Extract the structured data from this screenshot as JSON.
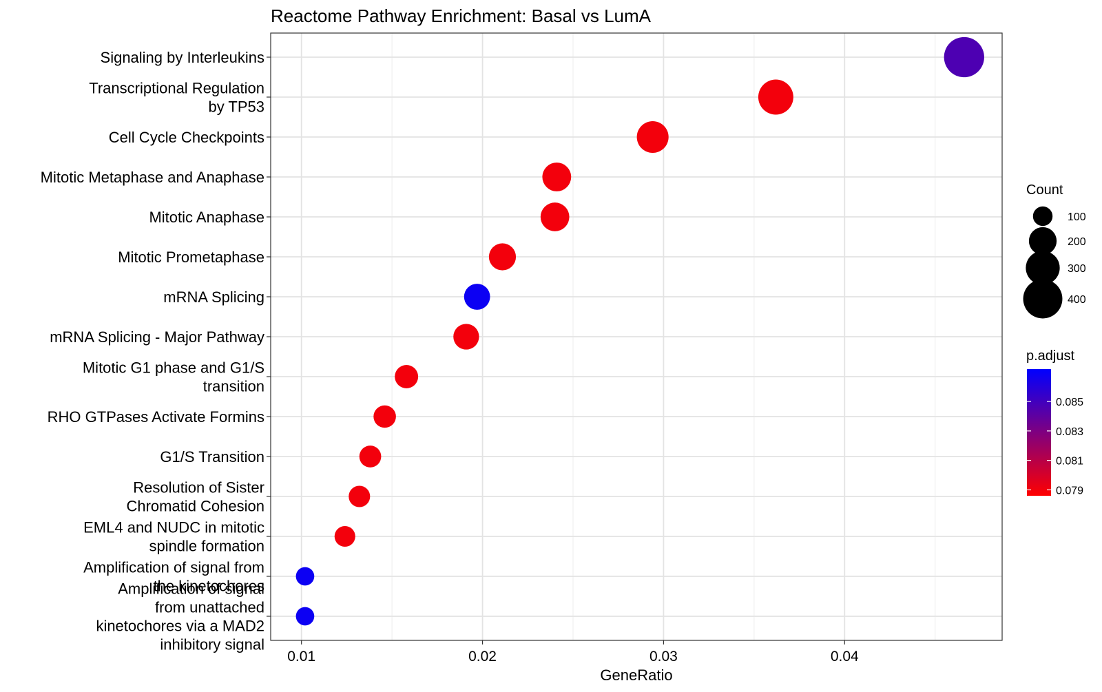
{
  "chart_data": {
    "type": "scatter",
    "title": "Reactome Pathway Enrichment: Basal vs LumA",
    "xlabel": "GeneRatio",
    "ylabel": "",
    "xlim": [
      0.0083,
      0.0487
    ],
    "x_ticks": [
      "0.01",
      "0.02",
      "0.03",
      "0.04"
    ],
    "x_tick_values": [
      0.01,
      0.02,
      0.03,
      0.04
    ],
    "grid": true,
    "categories": [
      "Signaling by Interleukins",
      "Transcriptional Regulation\nby TP53",
      "Cell Cycle Checkpoints",
      "Mitotic Metaphase and Anaphase",
      "Mitotic Anaphase",
      "Mitotic Prometaphase",
      "mRNA Splicing",
      "mRNA Splicing - Major Pathway",
      "Mitotic G1 phase and G1/S\ntransition",
      "RHO GTPases Activate Formins",
      "G1/S Transition",
      "Resolution of Sister\nChromatid Cohesion",
      "EML4 and NUDC in mitotic\nspindle formation",
      "Amplification of signal from\nthe kinetochores",
      "Amplification  of signal\nfrom unattached\nkinetochores via a MAD2\ninhibitory signal"
    ],
    "points": [
      {
        "x": 0.0466,
        "count": 420,
        "p_adjust": 0.0846
      },
      {
        "x": 0.0362,
        "count": 320,
        "p_adjust": 0.079
      },
      {
        "x": 0.0294,
        "count": 262,
        "p_adjust": 0.079
      },
      {
        "x": 0.0241,
        "count": 216,
        "p_adjust": 0.079
      },
      {
        "x": 0.024,
        "count": 215,
        "p_adjust": 0.079
      },
      {
        "x": 0.0211,
        "count": 190,
        "p_adjust": 0.079
      },
      {
        "x": 0.0197,
        "count": 176,
        "p_adjust": 0.0868
      },
      {
        "x": 0.0191,
        "count": 172,
        "p_adjust": 0.079
      },
      {
        "x": 0.0158,
        "count": 142,
        "p_adjust": 0.079
      },
      {
        "x": 0.0146,
        "count": 131,
        "p_adjust": 0.079
      },
      {
        "x": 0.0138,
        "count": 124,
        "p_adjust": 0.079
      },
      {
        "x": 0.0132,
        "count": 119,
        "p_adjust": 0.079
      },
      {
        "x": 0.0124,
        "count": 112,
        "p_adjust": 0.079
      },
      {
        "x": 0.0102,
        "count": 88,
        "p_adjust": 0.0868
      },
      {
        "x": 0.0102,
        "count": 88,
        "p_adjust": 0.0868
      }
    ],
    "size_legend": {
      "title": "Count",
      "values": [
        100,
        200,
        300,
        400
      ],
      "labels": [
        "100",
        "200",
        "300",
        "400"
      ]
    },
    "color_legend": {
      "title": "p.adjust",
      "range": [
        0.0786,
        0.0872
      ],
      "ticks": [
        0.079,
        0.081,
        0.083,
        0.085
      ],
      "labels": [
        "0.079",
        "0.081",
        "0.083",
        "0.085"
      ],
      "low_color": "#FF0000",
      "high_color": "#0000FF"
    },
    "legend_position": "right"
  }
}
